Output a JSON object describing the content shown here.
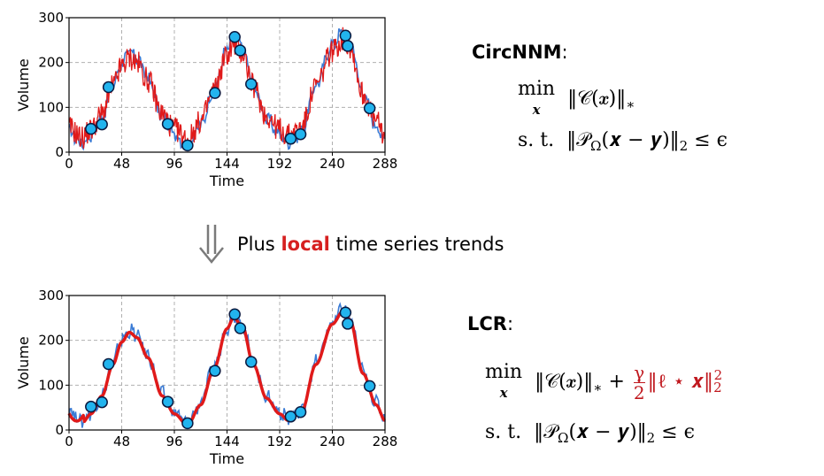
{
  "colors": {
    "observed": "#3a7bd5",
    "estimate": "#e01a1a",
    "marker_fill": "#22b4ee",
    "accent": "#c0181e"
  },
  "chart_data": [
    {
      "type": "line",
      "title": "",
      "xlabel": "Time",
      "ylabel": "Volume",
      "xlim": [
        0,
        288
      ],
      "ylim": [
        0,
        300
      ],
      "xticks": [
        "0",
        "48",
        "96",
        "144",
        "192",
        "240",
        "288"
      ],
      "yticks": [
        "0",
        "100",
        "200",
        "300"
      ],
      "grid": true,
      "series": [
        {
          "role": "observed",
          "color": "#3a7bd5",
          "style": "noisy daily pattern, peaks ~270 near t=150 and t=252, troughs ~15 near t=110 and t=200"
        },
        {
          "role": "estimate",
          "color": "#e01a1a",
          "style": "noisy reconstruction"
        }
      ],
      "markers": [
        {
          "x": 20,
          "y": 52
        },
        {
          "x": 30,
          "y": 62
        },
        {
          "x": 36,
          "y": 145
        },
        {
          "x": 90,
          "y": 63
        },
        {
          "x": 108,
          "y": 15
        },
        {
          "x": 133,
          "y": 132
        },
        {
          "x": 151,
          "y": 257
        },
        {
          "x": 156,
          "y": 227
        },
        {
          "x": 166,
          "y": 152
        },
        {
          "x": 202,
          "y": 30
        },
        {
          "x": 211,
          "y": 40
        },
        {
          "x": 252,
          "y": 260
        },
        {
          "x": 254,
          "y": 237
        },
        {
          "x": 274,
          "y": 98
        }
      ]
    },
    {
      "type": "line",
      "title": "",
      "xlabel": "Time",
      "ylabel": "Volume",
      "xlim": [
        0,
        288
      ],
      "ylim": [
        0,
        300
      ],
      "xticks": [
        "0",
        "48",
        "96",
        "144",
        "192",
        "240",
        "288"
      ],
      "yticks": [
        "0",
        "100",
        "200",
        "300"
      ],
      "grid": true,
      "series": [
        {
          "role": "observed",
          "color": "#3a7bd5",
          "style": "noisy daily pattern"
        },
        {
          "role": "estimate",
          "color": "#e01a1a",
          "style": "smooth reconstruction"
        }
      ],
      "markers": [
        {
          "x": 20,
          "y": 52
        },
        {
          "x": 30,
          "y": 62
        },
        {
          "x": 36,
          "y": 147
        },
        {
          "x": 90,
          "y": 63
        },
        {
          "x": 108,
          "y": 15
        },
        {
          "x": 133,
          "y": 132
        },
        {
          "x": 151,
          "y": 258
        },
        {
          "x": 156,
          "y": 227
        },
        {
          "x": 166,
          "y": 152
        },
        {
          "x": 202,
          "y": 30
        },
        {
          "x": 211,
          "y": 40
        },
        {
          "x": 252,
          "y": 262
        },
        {
          "x": 254,
          "y": 237
        },
        {
          "x": 274,
          "y": 98
        }
      ]
    }
  ],
  "models": {
    "top": {
      "name": "CircNNM",
      "colon": ":",
      "min_word": "min",
      "min_var": "x",
      "objective": "‖𝒞(𝒙)‖",
      "objective_sub": "∗",
      "st": "s. t.",
      "constraint": "‖𝒫",
      "constraint_sub": "Ω",
      "constraint_mid": "(𝒙 − 𝒚)‖",
      "constraint_sub2": "2",
      "constraint_end": " ≤ ϵ"
    },
    "bottom": {
      "name": "LCR",
      "colon": ":",
      "min_word": "min",
      "min_var": "x",
      "objective": "‖𝒞(𝒙)‖",
      "objective_sub": "∗",
      "plus": " + ",
      "frac_num": "γ",
      "frac_den": "2",
      "reg": "‖ℓ ⋆ 𝒙‖",
      "reg_sub": "2",
      "reg_sup": "2",
      "st": "s. t.",
      "constraint": "‖𝒫",
      "constraint_sub": "Ω",
      "constraint_mid": "(𝒙 − 𝒚)‖",
      "constraint_sub2": "2",
      "constraint_end": " ≤ ϵ"
    }
  },
  "transition": {
    "prefix": "Plus ",
    "highlight": "local",
    "suffix": " time series trends",
    "arrow": "⇓"
  }
}
